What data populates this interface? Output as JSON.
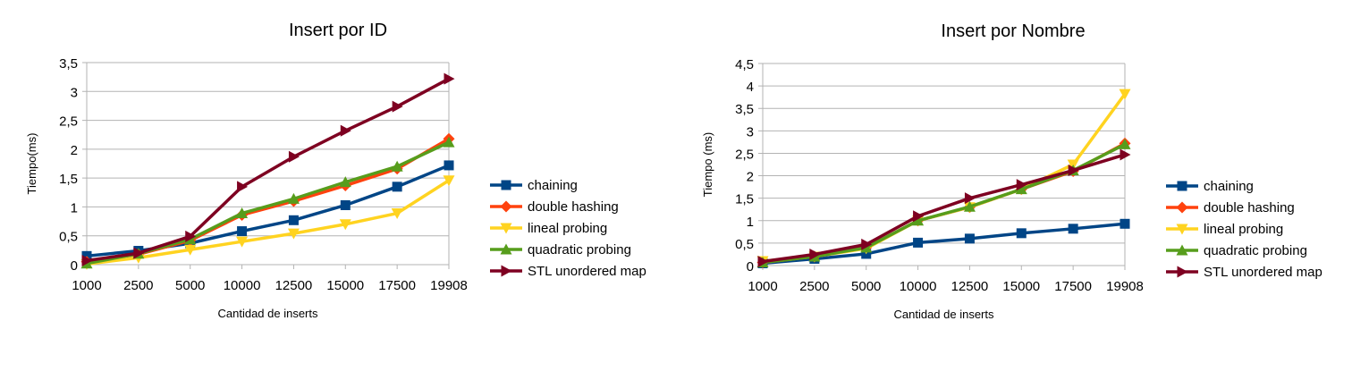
{
  "chart_data": [
    {
      "type": "line",
      "title": "Insert por ID",
      "xlabel": "Cantidad de inserts",
      "ylabel": "Tiempo(ms)",
      "categories": [
        "1000",
        "2500",
        "5000",
        "10000",
        "12500",
        "15000",
        "17500",
        "19908"
      ],
      "ylim": [
        0,
        3.5
      ],
      "ytick_labels": [
        "0",
        "0,5",
        "1",
        "1,5",
        "2",
        "2,5",
        "3",
        "3,5"
      ],
      "grid": true,
      "legend_position": "right",
      "series": [
        {
          "name": "chaining",
          "color": "#004586",
          "marker": "square",
          "values": [
            0.15,
            0.24,
            0.37,
            0.58,
            0.77,
            1.03,
            1.35,
            1.72
          ]
        },
        {
          "name": "double hashing",
          "color": "#ff420e",
          "marker": "diamond",
          "values": [
            0.05,
            0.18,
            0.42,
            0.86,
            1.1,
            1.37,
            1.66,
            2.18
          ]
        },
        {
          "name": "lineal probing",
          "color": "#ffd320",
          "marker": "triangle-down",
          "values": [
            0.01,
            0.12,
            0.26,
            0.4,
            0.54,
            0.7,
            0.89,
            1.46
          ]
        },
        {
          "name": "quadratic probing",
          "color": "#579d1c",
          "marker": "triangle-up",
          "values": [
            0.02,
            0.19,
            0.44,
            0.89,
            1.14,
            1.43,
            1.7,
            2.12
          ]
        },
        {
          "name": "STL unordered map",
          "color": "#7e0021",
          "marker": "triangle-right",
          "values": [
            0.07,
            0.2,
            0.49,
            1.35,
            1.87,
            2.32,
            2.74,
            3.22
          ]
        }
      ]
    },
    {
      "type": "line",
      "title": "Insert por Nombre",
      "xlabel": "Cantidad de inserts",
      "ylabel": "Tiempo (ms)",
      "categories": [
        "1000",
        "2500",
        "5000",
        "10000",
        "12500",
        "15000",
        "17500",
        "19908"
      ],
      "ylim": [
        0,
        4.5
      ],
      "ytick_labels": [
        "0",
        "0,5",
        "1",
        "1,5",
        "2",
        "2,5",
        "3",
        "3,5",
        "4",
        "4,5"
      ],
      "grid": true,
      "legend_position": "right",
      "series": [
        {
          "name": "chaining",
          "color": "#004586",
          "marker": "square",
          "values": [
            0.05,
            0.15,
            0.26,
            0.51,
            0.6,
            0.72,
            0.82,
            0.93
          ]
        },
        {
          "name": "double hashing",
          "color": "#ff420e",
          "marker": "diamond",
          "values": [
            0.07,
            0.2,
            0.4,
            1.0,
            1.3,
            1.7,
            2.1,
            2.72
          ]
        },
        {
          "name": "lineal probing",
          "color": "#ffd320",
          "marker": "triangle-down",
          "values": [
            0.1,
            0.2,
            0.38,
            1.0,
            1.3,
            1.7,
            2.25,
            3.82
          ]
        },
        {
          "name": "quadratic probing",
          "color": "#579d1c",
          "marker": "triangle-up",
          "values": [
            0.07,
            0.2,
            0.4,
            1.0,
            1.31,
            1.7,
            2.12,
            2.7
          ]
        },
        {
          "name": "STL unordered map",
          "color": "#7e0021",
          "marker": "triangle-right",
          "values": [
            0.09,
            0.25,
            0.47,
            1.1,
            1.5,
            1.8,
            2.12,
            2.47
          ]
        }
      ]
    }
  ]
}
